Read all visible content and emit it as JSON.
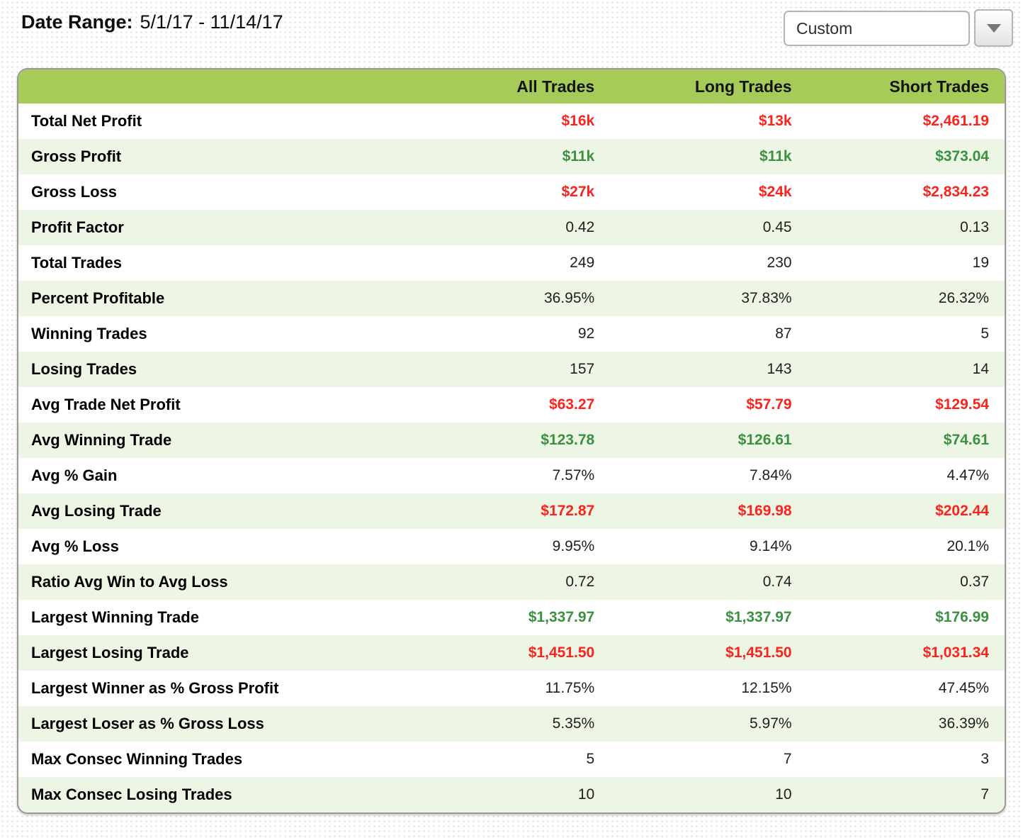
{
  "header": {
    "date_range_label": "Date Range:",
    "date_range_value": "5/1/17 - 11/14/17",
    "range_select": {
      "value": "Custom"
    }
  },
  "table": {
    "columns": [
      "All Trades",
      "Long Trades",
      "Short Trades"
    ],
    "rows": [
      {
        "label": "Total Net Profit",
        "values": [
          "$16k",
          "$13k",
          "$2,461.19"
        ],
        "value_color": "red"
      },
      {
        "label": "Gross Profit",
        "values": [
          "$11k",
          "$11k",
          "$373.04"
        ],
        "value_color": "green"
      },
      {
        "label": "Gross Loss",
        "values": [
          "$27k",
          "$24k",
          "$2,834.23"
        ],
        "value_color": "red"
      },
      {
        "label": "Profit Factor",
        "values": [
          "0.42",
          "0.45",
          "0.13"
        ],
        "value_color": "neutral"
      },
      {
        "label": "Total Trades",
        "values": [
          "249",
          "230",
          "19"
        ],
        "value_color": "neutral"
      },
      {
        "label": "Percent Profitable",
        "values": [
          "36.95%",
          "37.83%",
          "26.32%"
        ],
        "value_color": "neutral"
      },
      {
        "label": "Winning Trades",
        "values": [
          "92",
          "87",
          "5"
        ],
        "value_color": "neutral"
      },
      {
        "label": "Losing Trades",
        "values": [
          "157",
          "143",
          "14"
        ],
        "value_color": "neutral"
      },
      {
        "label": "Avg Trade Net Profit",
        "values": [
          "$63.27",
          "$57.79",
          "$129.54"
        ],
        "value_color": "red"
      },
      {
        "label": "Avg Winning Trade",
        "values": [
          "$123.78",
          "$126.61",
          "$74.61"
        ],
        "value_color": "green"
      },
      {
        "label": "Avg % Gain",
        "values": [
          "7.57%",
          "7.84%",
          "4.47%"
        ],
        "value_color": "neutral"
      },
      {
        "label": "Avg Losing Trade",
        "values": [
          "$172.87",
          "$169.98",
          "$202.44"
        ],
        "value_color": "red"
      },
      {
        "label": "Avg % Loss",
        "values": [
          "9.95%",
          "9.14%",
          "20.1%"
        ],
        "value_color": "neutral"
      },
      {
        "label": "Ratio Avg Win to Avg Loss",
        "values": [
          "0.72",
          "0.74",
          "0.37"
        ],
        "value_color": "neutral"
      },
      {
        "label": "Largest Winning Trade",
        "values": [
          "$1,337.97",
          "$1,337.97",
          "$176.99"
        ],
        "value_color": "green"
      },
      {
        "label": "Largest Losing Trade",
        "values": [
          "$1,451.50",
          "$1,451.50",
          "$1,031.34"
        ],
        "value_color": "red"
      },
      {
        "label": "Largest Winner as % Gross Profit",
        "values": [
          "11.75%",
          "12.15%",
          "47.45%"
        ],
        "value_color": "neutral"
      },
      {
        "label": "Largest Loser as % Gross Loss",
        "values": [
          "5.35%",
          "5.97%",
          "36.39%"
        ],
        "value_color": "neutral"
      },
      {
        "label": "Max Consec Winning Trades",
        "values": [
          "5",
          "7",
          "3"
        ],
        "value_color": "neutral"
      },
      {
        "label": "Max Consec Losing Trades",
        "values": [
          "10",
          "10",
          "7"
        ],
        "value_color": "neutral"
      }
    ]
  },
  "colors": {
    "header_green": "#a6cb59",
    "row_alt_green": "#edf5e4",
    "positive_green": "#3b9041",
    "negative_red": "#fb231d"
  }
}
